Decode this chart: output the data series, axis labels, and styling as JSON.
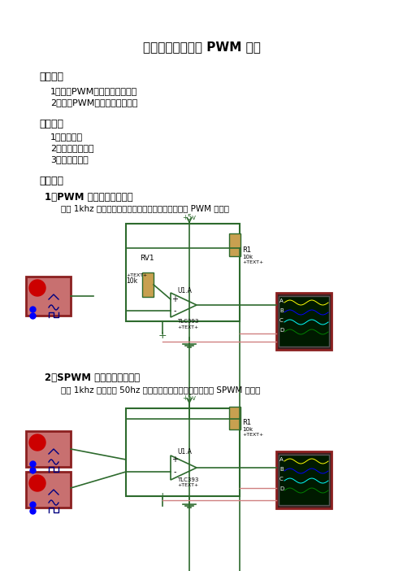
{
  "title": "实验四、脉宽调制 PWM 技术",
  "section1_title": "实验目的",
  "section1_items": [
    "1、掌握PWM信号产生的原理。",
    "2、掌握PWM信号电路的设计。"
  ],
  "section2_title": "实验设备",
  "section2_items": [
    "1、信号源。",
    "2、四踪示波器。",
    "3、电子元件。"
  ],
  "section3_title": "实验线路",
  "circuit1_title": "1、PWM 信号产生原理电路",
  "circuit1_desc": "标准 1khz 三角波与直流电压进行比较，就可以得到 PWM 信号。",
  "circuit2_title": "2、SPWM 信号产生原理电路",
  "circuit2_desc": "标准 1khz 三角波与 50hz 正弦信号进行比较，就可以得到 SPWM 信号。",
  "bg_color": "#ffffff",
  "text_color": "#000000",
  "circuit_color": "#2d6a2d",
  "header_color": "#1a1a1a"
}
